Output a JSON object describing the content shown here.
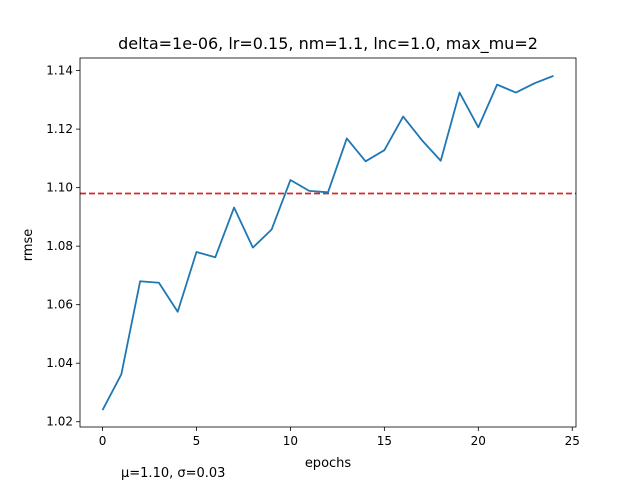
{
  "chart_data": {
    "type": "line",
    "title": "delta=1e-06, lr=0.15, nm=1.1, lnc=1.0, max_mu=2",
    "xlabel": "epochs",
    "ylabel": "rmse",
    "xlim": [
      -1.2,
      25.2
    ],
    "ylim": [
      1.0182,
      1.1443
    ],
    "xticks": [
      0,
      5,
      10,
      15,
      20,
      25
    ],
    "yticks": [
      1.02,
      1.04,
      1.06,
      1.08,
      1.1,
      1.12,
      1.14
    ],
    "ytick_labels": [
      "1.02",
      "1.04",
      "1.06",
      "1.08",
      "1.10",
      "1.12",
      "1.14"
    ],
    "grid": false,
    "series": [
      {
        "color": "#1f77b4",
        "x": [
          0,
          1,
          2,
          3,
          4,
          5,
          6,
          7,
          8,
          9,
          10,
          11,
          12,
          13,
          14,
          15,
          16,
          17,
          18,
          19,
          20,
          21,
          22,
          23,
          24
        ],
        "y": [
          1.024,
          1.0362,
          1.068,
          1.0675,
          1.0576,
          1.078,
          1.0762,
          1.0932,
          1.0795,
          1.0857,
          1.1026,
          1.0989,
          1.0984,
          1.1168,
          1.109,
          1.1128,
          1.1243,
          1.1162,
          1.1092,
          1.1325,
          1.1206,
          1.1352,
          1.1325,
          1.1357,
          1.1382
        ]
      }
    ],
    "hline": {
      "y": 1.098,
      "color": "#d62728",
      "style": "dashed"
    }
  },
  "stats_text": "μ=1.10, σ=0.03"
}
